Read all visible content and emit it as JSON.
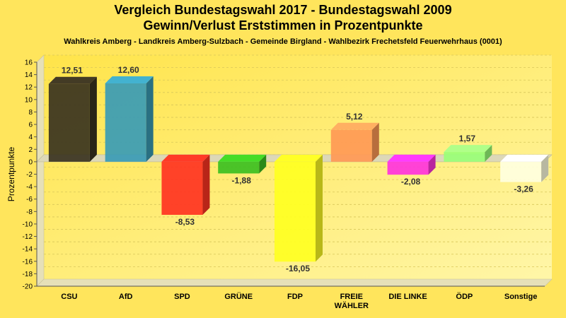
{
  "header": {
    "title_line1": "Vergleich Bundestagswahl 2017 - Bundestagswahl 2009",
    "title_line2": "Gewinn/Verlust Erststimmen in Prozentpunkte",
    "subtitle": "Wahlkreis Amberg - Landkreis Amberg-Sulzbach - Gemeinde Birgland - Wahlbezirk Frechetsfeld Feuerwehrhaus (0001)"
  },
  "chart_data": {
    "type": "bar",
    "ylabel": "Prozentpunkte",
    "xlabel": "",
    "ylim": [
      -20,
      16
    ],
    "yticks": [
      16,
      14,
      12,
      10,
      8,
      6,
      4,
      2,
      0,
      -2,
      -4,
      -6,
      -8,
      -10,
      -12,
      -14,
      -16,
      -18,
      -20
    ],
    "grid": true,
    "categories": [
      "CSU",
      "AfD",
      "SPD",
      "GRÜNE",
      "FDP",
      "FREIE WÄHLER",
      "DIE LINKE",
      "ÖDP",
      "Sonstige"
    ],
    "category_lines": [
      [
        "CSU"
      ],
      [
        "AfD"
      ],
      [
        "SPD"
      ],
      [
        "GRÜNE"
      ],
      [
        "FDP"
      ],
      [
        "FREIE",
        "WÄHLER"
      ],
      [
        "DIE LINKE"
      ],
      [
        "ÖDP"
      ],
      [
        "Sonstige"
      ]
    ],
    "values": [
      12.51,
      12.6,
      -8.53,
      -1.88,
      -16.05,
      5.12,
      -2.08,
      1.57,
      -3.26
    ],
    "value_labels": [
      "12,51",
      "12,60",
      "-8,53",
      "-1,88",
      "-16,05",
      "5,12",
      "-2,08",
      "1,57",
      "-3,26"
    ],
    "colors": [
      "#3a3320",
      "#3a9bb5",
      "#ff3322",
      "#3cbf22",
      "#ffff22",
      "#ff9955",
      "#ff33dd",
      "#99ff77",
      "#ffffe0"
    ]
  }
}
